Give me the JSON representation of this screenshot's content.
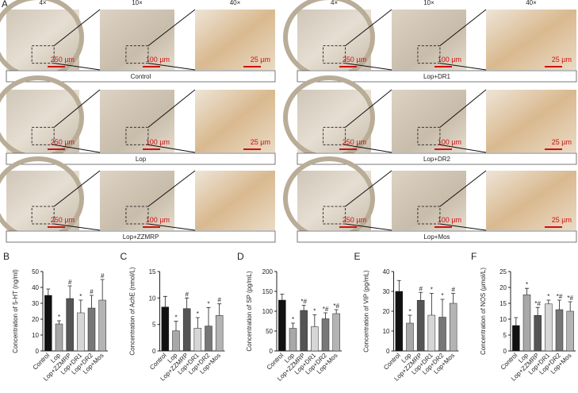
{
  "panel_a": {
    "label": "A",
    "magnifications": [
      "4×",
      "10×",
      "40×"
    ],
    "groups": [
      {
        "name": "Control",
        "scale_bars": [
          "250 µm",
          "100 µm",
          "25 µm"
        ]
      },
      {
        "name": "Lop+DR1",
        "scale_bars": [
          "250 µm",
          "100 µm",
          "25 µm"
        ]
      },
      {
        "name": "Lop",
        "scale_bars": [
          "250 µm",
          "100 µm",
          "25 µm"
        ]
      },
      {
        "name": "Lop+DR2",
        "scale_bars": [
          "250 µm",
          "100 µm",
          "25 µm"
        ]
      },
      {
        "name": "Lop+ZZMRP",
        "scale_bars": [
          "250 µm",
          "100 µm"
        ]
      },
      {
        "name": "Lop+Mos",
        "scale_bars": [
          "250 µm",
          "100 µm",
          "25 µm"
        ]
      }
    ]
  },
  "chart_data": [
    {
      "type": "bar",
      "label": "B",
      "ylabel": "Concentration of 5-HT (ng/ml)",
      "categories": [
        "Control",
        "Lop",
        "Lop+ZZMRP",
        "Lop+DR1",
        "Lop+DR2",
        "Lop+Mos"
      ],
      "values": [
        35,
        17,
        33,
        24,
        27,
        32
      ],
      "errors": [
        4,
        2,
        8,
        8,
        8,
        13
      ],
      "marks": [
        null,
        "*",
        "#",
        "*",
        "#",
        "#"
      ],
      "colors": [
        "#111111",
        "#a8a8a8",
        "#555555",
        "#d6d6d6",
        "#777777",
        "#b4b4b4"
      ],
      "ylim": [
        0,
        50
      ],
      "yticks": [
        0,
        10,
        20,
        30,
        40,
        50
      ]
    },
    {
      "type": "bar",
      "label": "C",
      "ylabel": "Concentration of AchE (nmol/L)",
      "categories": [
        "Control",
        "Lop",
        "Lop+ZZMRP",
        "Lop+DR1",
        "Lop+DR2",
        "Lop+Mos"
      ],
      "values": [
        8.3,
        3.8,
        8.0,
        4.3,
        4.7,
        6.7
      ],
      "errors": [
        2,
        1.8,
        2,
        2,
        3.5,
        2.2
      ],
      "marks": [
        null,
        "*",
        "#",
        "*",
        "*",
        "#"
      ],
      "colors": [
        "#111111",
        "#a8a8a8",
        "#555555",
        "#d6d6d6",
        "#777777",
        "#b4b4b4"
      ],
      "ylim": [
        0,
        15
      ],
      "yticks": [
        0,
        5,
        10,
        15
      ]
    },
    {
      "type": "bar",
      "label": "D",
      "ylabel": "Concentration of SP (pg/mL)",
      "categories": [
        "Control",
        "Lop",
        "Lop+ZZMRP",
        "Lop+DR1",
        "Lop+DR2",
        "Lop+Mos"
      ],
      "values": [
        128,
        57,
        102,
        61,
        81,
        94
      ],
      "errors": [
        15,
        13,
        13,
        30,
        15,
        10
      ],
      "marks": [
        null,
        "*",
        "*#",
        "*",
        "*#",
        "*#"
      ],
      "colors": [
        "#111111",
        "#a8a8a8",
        "#555555",
        "#d6d6d6",
        "#777777",
        "#b4b4b4"
      ],
      "ylim": [
        0,
        200
      ],
      "yticks": [
        0,
        50,
        100,
        150,
        200
      ]
    },
    {
      "type": "bar",
      "label": "E",
      "ylabel": "Concentration of VIP (pg/mL)",
      "categories": [
        "Control",
        "Lop",
        "Lop+ZZMRP",
        "Lop+DR1",
        "Lop+DR2",
        "Lop+Mos"
      ],
      "values": [
        30,
        14,
        25.5,
        18,
        17,
        24
      ],
      "errors": [
        5.5,
        4,
        4,
        11,
        9,
        5
      ],
      "marks": [
        null,
        "*",
        "#",
        "*",
        "*",
        "#"
      ],
      "colors": [
        "#111111",
        "#a8a8a8",
        "#555555",
        "#d6d6d6",
        "#777777",
        "#b4b4b4"
      ],
      "ylim": [
        0,
        40
      ],
      "yticks": [
        0,
        10,
        20,
        30,
        40
      ]
    },
    {
      "type": "bar",
      "label": "F",
      "ylabel": "Concentration of NOS (μmol/L)",
      "categories": [
        "Control",
        "Lop",
        "Lop+ZZMRP",
        "Lop+DR1",
        "Lop+DR2",
        "Lop+Mos"
      ],
      "values": [
        8,
        17.7,
        11.2,
        14.8,
        13,
        12.5
      ],
      "errors": [
        2.5,
        2,
        2.5,
        1.2,
        3,
        3
      ],
      "marks": [
        null,
        "*",
        "*#",
        "*",
        "*#",
        "*#"
      ],
      "colors": [
        "#111111",
        "#a8a8a8",
        "#555555",
        "#d6d6d6",
        "#777777",
        "#b4b4b4"
      ],
      "ylim": [
        0,
        25
      ],
      "yticks": [
        0,
        5,
        10,
        15,
        20,
        25
      ]
    }
  ]
}
